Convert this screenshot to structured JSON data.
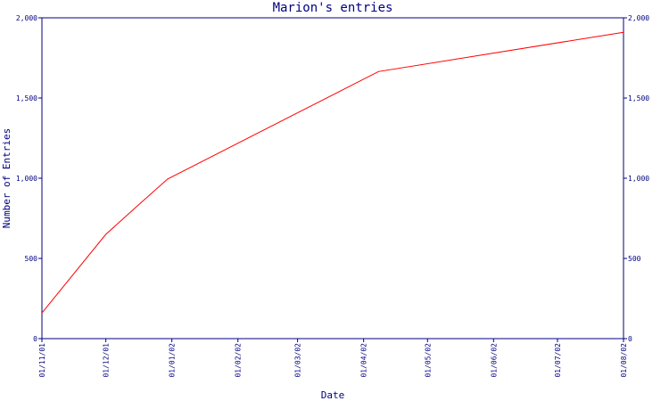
{
  "chart_data": {
    "type": "line",
    "title": "Marion's entries",
    "xlabel": "Date",
    "ylabel": "Number of Entries",
    "x_ticks": [
      "01/11/01",
      "01/12/01",
      "01/01/02",
      "01/02/02",
      "01/03/02",
      "01/04/02",
      "01/05/02",
      "01/06/02",
      "01/07/02",
      "01/08/02"
    ],
    "y_ticks": [
      "0",
      "500",
      "1,000",
      "1,500",
      "2,000"
    ],
    "y_tick_values": [
      0,
      500,
      1000,
      1500,
      2000
    ],
    "ylim": [
      0,
      2000
    ],
    "xlim": [
      "2001-11-01",
      "2002-08-01"
    ],
    "grid": false,
    "legend": "none",
    "colors": {
      "line": "#ff0000",
      "axes": "#000080",
      "text": "#000080"
    },
    "series": [
      {
        "x": [
          "2001-11-01",
          "2001-12-01",
          "2001-12-16",
          "2001-12-30",
          "2002-04-08",
          "2002-08-01"
        ],
        "y": [
          160,
          650,
          830,
          995,
          1665,
          1910
        ]
      }
    ]
  }
}
